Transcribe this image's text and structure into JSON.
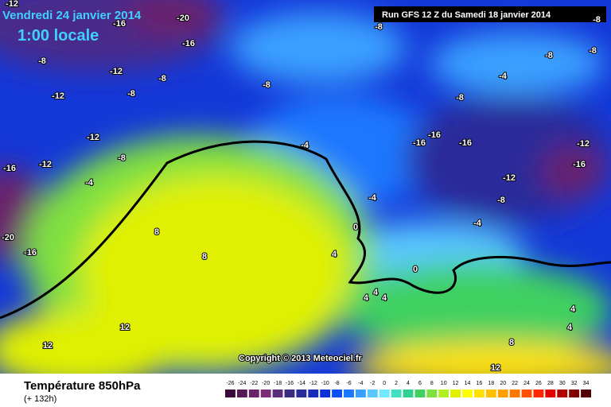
{
  "map": {
    "title": "Vendredi 24 janvier 2014",
    "time": "1:00 locale",
    "run": "Run GFS 12 Z du Samedi 18 janvier 2014",
    "copyright": "Copyright © 2013 Meteociel.fr",
    "variable": "Température 850hPa",
    "lead": "(+ 132h)",
    "contour_labels": [
      -12,
      -20,
      -16,
      -16,
      -8,
      -12,
      -8,
      -12,
      -8,
      -8,
      -12,
      -16,
      -12,
      -8,
      -4,
      -20,
      -16,
      8,
      8,
      12,
      12,
      -4,
      -4,
      0,
      4,
      0,
      4,
      4,
      4,
      -8,
      -8,
      -8,
      -8,
      -4,
      -8,
      -16,
      -16,
      -16,
      -12,
      -16,
      -12,
      -8,
      -4,
      4,
      4,
      8,
      12
    ],
    "scale": {
      "values": [
        -26,
        -24,
        -22,
        -20,
        -18,
        -16,
        -14,
        -12,
        -10,
        -8,
        -6,
        -4,
        -2,
        0,
        2,
        4,
        6,
        8,
        10,
        12,
        14,
        16,
        18,
        20,
        22,
        24,
        26,
        28,
        30,
        32,
        34
      ],
      "colors": [
        "#3a0a3a",
        "#551a55",
        "#6a246a",
        "#7a2e7a",
        "#5a2e7a",
        "#3a2a80",
        "#2a2a9a",
        "#1a2ab8",
        "#0a30d8",
        "#0a50f0",
        "#1a78ff",
        "#3aa0ff",
        "#5ac8ff",
        "#70e8ff",
        "#40e0c0",
        "#30d090",
        "#40d060",
        "#80e040",
        "#b0f020",
        "#e0f000",
        "#ffff00",
        "#ffe000",
        "#ffc000",
        "#ffa000",
        "#ff7800",
        "#ff5000",
        "#ff2800",
        "#e00000",
        "#b00000",
        "#800000",
        "#500000"
      ]
    }
  }
}
